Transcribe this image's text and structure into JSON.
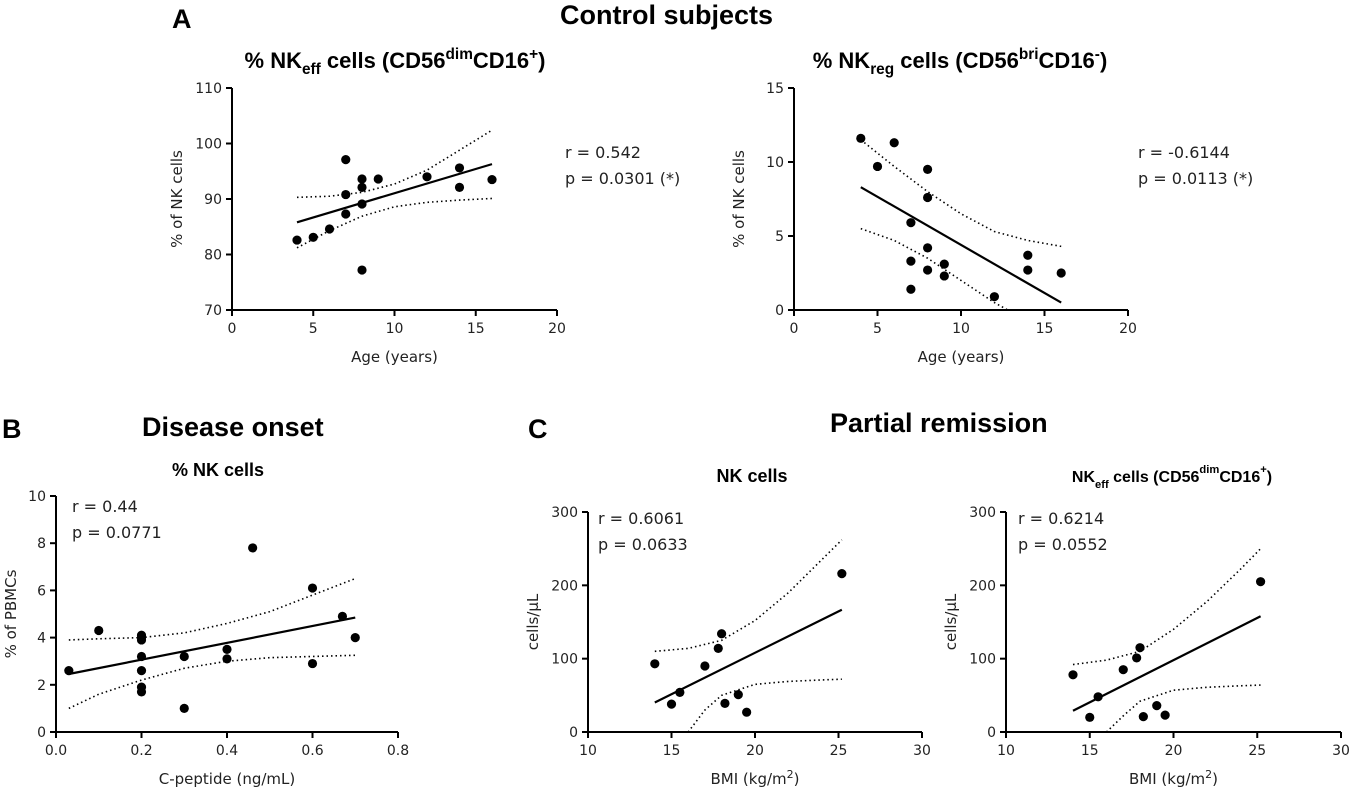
{
  "figure": {
    "panel_a": {
      "letter": "A",
      "title": "Control subjects"
    },
    "panel_b": {
      "letter": "B",
      "title": "Disease onset"
    },
    "panel_c": {
      "letter": "C",
      "title": "Partial remission"
    }
  },
  "colors": {
    "ink": "#000000",
    "text": "#222222"
  },
  "chart_data": [
    {
      "id": "a1",
      "type": "scatter",
      "title": "% NK",
      "title_sub": "eff",
      "title_mid": " cells (CD56",
      "title_sup1": "dim",
      "title_mid2": "CD16",
      "title_sup2": "+",
      "title_end": ")",
      "xlabel": "Age (years)",
      "ylabel": "% of NK cells",
      "xlim": [
        0,
        20
      ],
      "ylim": [
        70,
        110
      ],
      "xticks": [
        "0",
        "5",
        "10",
        "15",
        "20"
      ],
      "yticks": [
        "70",
        "80",
        "90",
        "100",
        "110"
      ],
      "x": [
        4,
        5,
        6,
        7,
        7,
        7,
        8,
        8,
        8,
        8,
        9,
        12,
        14,
        14,
        16
      ],
      "y": [
        82.6,
        83.1,
        84.6,
        97.1,
        90.8,
        87.3,
        93.6,
        92.1,
        89.1,
        77.2,
        93.6,
        94.0,
        95.6,
        92.1,
        93.5
      ],
      "fit": {
        "slope": 0.874,
        "intercept": 82.3,
        "x_range": [
          4,
          16
        ]
      },
      "ci_upper": {
        "x": [
          4,
          6,
          8,
          10,
          12,
          14,
          16
        ],
        "y": [
          90.3,
          90.5,
          91.2,
          92.7,
          95.2,
          98.8,
          102.4
        ]
      },
      "ci_lower": {
        "x": [
          4,
          6,
          8,
          10,
          12,
          14,
          16
        ],
        "y": [
          81.2,
          84.3,
          86.9,
          88.6,
          89.4,
          89.8,
          90.1
        ]
      },
      "r_text": "r = 0.542",
      "p_text": "p = 0.0301 (*)"
    },
    {
      "id": "a2",
      "type": "scatter",
      "title": "% NK",
      "title_sub": "reg",
      "title_mid": " cells (CD56",
      "title_sup1": "bri",
      "title_mid2": "CD16",
      "title_sup2": "-",
      "title_end": ")",
      "xlabel": "Age (years)",
      "ylabel": "% of NK cells",
      "xlim": [
        0,
        20
      ],
      "ylim": [
        0,
        15
      ],
      "xticks": [
        "0",
        "5",
        "10",
        "15",
        "20"
      ],
      "yticks": [
        "0",
        "5",
        "10",
        "15"
      ],
      "x": [
        4,
        5,
        6,
        7,
        7,
        7,
        8,
        8,
        8,
        8,
        9,
        9,
        12,
        14,
        14,
        16
      ],
      "y": [
        11.6,
        9.7,
        11.3,
        5.9,
        3.3,
        1.4,
        9.5,
        7.6,
        4.2,
        2.7,
        3.1,
        2.3,
        0.9,
        3.7,
        2.7,
        2.5
      ],
      "fit": {
        "slope": -0.65,
        "intercept": 10.9,
        "x_range": [
          4,
          16
        ]
      },
      "ci_upper": {
        "x": [
          4,
          6,
          8,
          10,
          12,
          14,
          16
        ],
        "y": [
          11.5,
          9.7,
          8.0,
          6.5,
          5.3,
          4.7,
          4.3
        ]
      },
      "ci_lower": {
        "x": [
          4,
          6,
          8,
          10,
          12,
          12.8
        ],
        "y": [
          5.5,
          4.7,
          3.5,
          2.0,
          0.5,
          -0.2
        ]
      },
      "r_text": "r = -0.6144",
      "p_text": "p = 0.0113 (*)"
    },
    {
      "id": "b1",
      "type": "scatter",
      "title": "% NK cells",
      "xlabel": "C-peptide (ng/mL)",
      "ylabel": "% of PBMCs",
      "xlim": [
        0,
        0.8
      ],
      "ylim": [
        0,
        10
      ],
      "xticks": [
        "0.0",
        "0.2",
        "0.4",
        "0.6",
        "0.8"
      ],
      "yticks": [
        "0",
        "2",
        "4",
        "6",
        "8",
        "10"
      ],
      "x": [
        0.03,
        0.1,
        0.2,
        0.2,
        0.2,
        0.2,
        0.2,
        0.2,
        0.2,
        0.3,
        0.3,
        0.4,
        0.4,
        0.46,
        0.6,
        0.6,
        0.67,
        0.7
      ],
      "y": [
        2.6,
        4.3,
        4.1,
        3.9,
        3.2,
        2.6,
        1.9,
        1.7,
        4.0,
        3.2,
        1.0,
        3.5,
        3.1,
        7.8,
        6.1,
        2.9,
        4.9,
        4.0
      ],
      "fit": {
        "slope": 3.57,
        "intercept": 2.35,
        "x_range": [
          0.03,
          0.7
        ]
      },
      "ci_upper": {
        "x": [
          0.03,
          0.1,
          0.2,
          0.3,
          0.4,
          0.5,
          0.6,
          0.7
        ],
        "y": [
          3.9,
          3.95,
          4.0,
          4.2,
          4.6,
          5.1,
          5.8,
          6.5
        ]
      },
      "ci_lower": {
        "x": [
          0.03,
          0.1,
          0.2,
          0.3,
          0.4,
          0.5,
          0.6,
          0.7
        ],
        "y": [
          1.0,
          1.6,
          2.2,
          2.7,
          3.0,
          3.15,
          3.2,
          3.25
        ]
      },
      "r_text": "r = 0.44",
      "p_text": "p = 0.0771"
    },
    {
      "id": "c1",
      "type": "scatter",
      "title": "NK cells",
      "xlabel": "BMI (kg/m",
      "xlabel_sup": "2",
      "xlabel_end": ")",
      "ylabel": "cells/µL",
      "xlim": [
        10,
        30
      ],
      "ylim": [
        0,
        300
      ],
      "xticks": [
        "10",
        "15",
        "20",
        "25",
        "30"
      ],
      "yticks": [
        "0",
        "100",
        "200",
        "300"
      ],
      "x": [
        14,
        15,
        15.5,
        17,
        17.8,
        18,
        18.2,
        19,
        19.5,
        25.2
      ],
      "y": [
        93,
        38,
        54,
        90,
        114,
        134,
        39,
        51,
        27,
        216
      ],
      "fit": {
        "slope": 11.3,
        "intercept": -118,
        "x_range": [
          14,
          25.2
        ]
      },
      "ci_upper": {
        "x": [
          14,
          16,
          18,
          20,
          22,
          24,
          25.2
        ],
        "y": [
          110,
          114,
          125,
          152,
          190,
          235,
          262
        ]
      },
      "ci_lower": {
        "x": [
          16,
          17,
          18,
          20,
          22,
          24,
          25.2
        ],
        "y": [
          0,
          30,
          50,
          65,
          69,
          71,
          72
        ]
      },
      "r_text": "r = 0.6061",
      "p_text": "p = 0.0633"
    },
    {
      "id": "c2",
      "type": "scatter",
      "title": "NK",
      "title_sub": "eff",
      "title_mid": " cells (CD56",
      "title_sup1": "dim",
      "title_mid2": "CD16",
      "title_sup2": "+",
      "title_end": ")",
      "xlabel": "BMI (kg/m",
      "xlabel_sup": "2",
      "xlabel_end": ")",
      "ylabel": "cells/µL",
      "xlim": [
        10,
        30
      ],
      "ylim": [
        0,
        300
      ],
      "xticks": [
        "10",
        "15",
        "20",
        "25",
        "30"
      ],
      "yticks": [
        "0",
        "100",
        "200",
        "300"
      ],
      "x": [
        14,
        15,
        15.5,
        17,
        17.8,
        18,
        18.2,
        19,
        19.5,
        25.2
      ],
      "y": [
        78,
        20,
        48,
        85,
        101,
        115,
        21,
        36,
        23,
        205
      ],
      "fit": {
        "slope": 11.5,
        "intercept": -132,
        "x_range": [
          14,
          25.2
        ]
      },
      "ci_upper": {
        "x": [
          14,
          16,
          18,
          20,
          22,
          24,
          25.2
        ],
        "y": [
          92,
          98,
          110,
          140,
          178,
          222,
          250
        ]
      },
      "ci_lower": {
        "x": [
          16,
          17,
          18,
          20,
          22,
          24,
          25.2
        ],
        "y": [
          0,
          22,
          42,
          57,
          61,
          63,
          64
        ]
      },
      "r_text": "r = 0.6214",
      "p_text": "p = 0.0552"
    }
  ]
}
